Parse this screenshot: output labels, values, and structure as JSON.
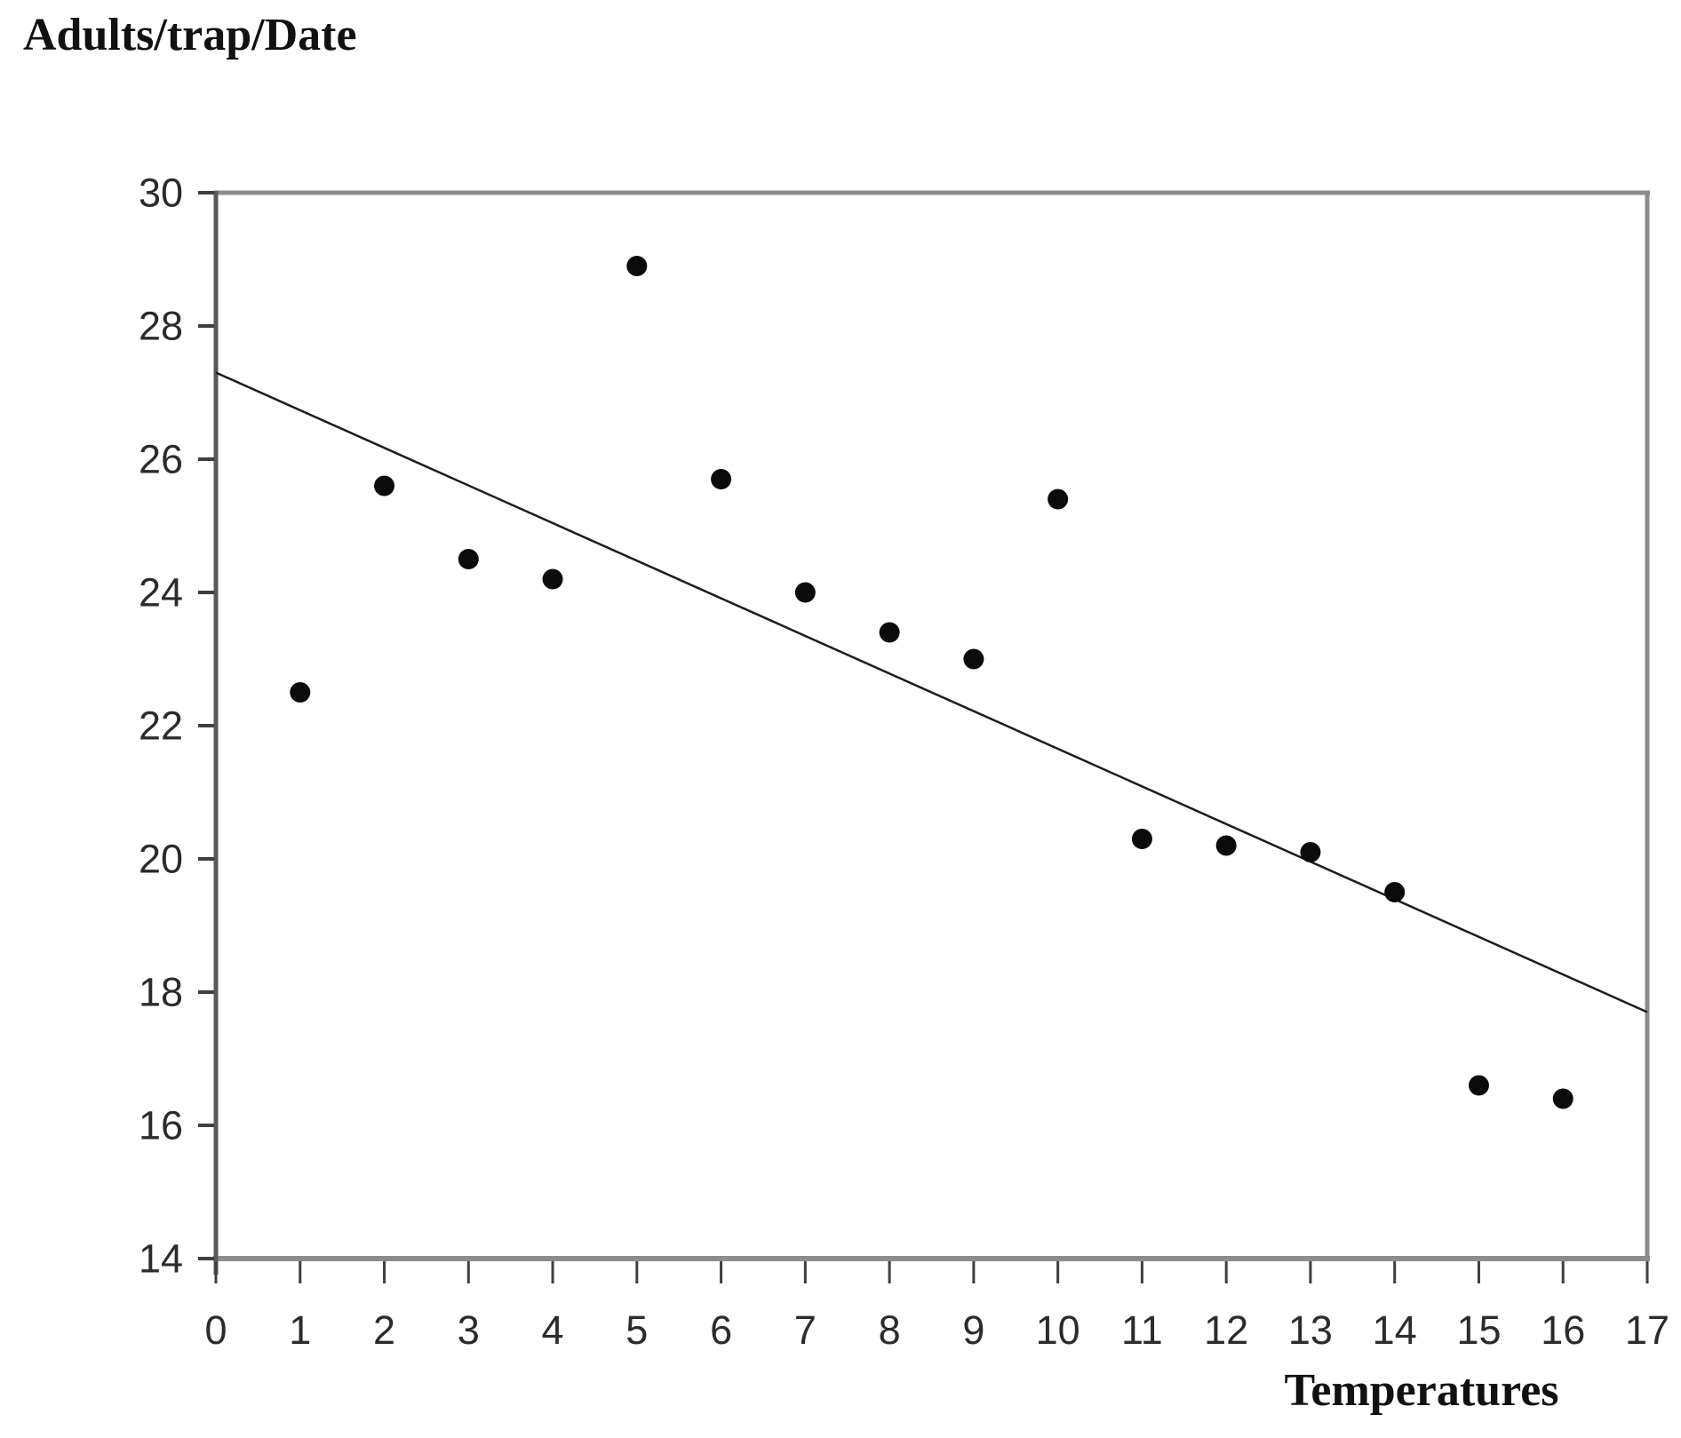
{
  "chart_data": {
    "type": "scatter",
    "title": "",
    "ylabel": "Adults/trap/Date",
    "xlabel": "Temperatures",
    "xlim": [
      0,
      17
    ],
    "ylim": [
      14,
      30
    ],
    "x_ticks": [
      0,
      1,
      2,
      3,
      4,
      5,
      6,
      7,
      8,
      9,
      10,
      11,
      12,
      13,
      14,
      15,
      16,
      17
    ],
    "y_ticks": [
      14,
      16,
      18,
      20,
      22,
      24,
      26,
      28,
      30
    ],
    "grid": false,
    "legend": false,
    "marker": {
      "shape": "circle",
      "color": "#0b0b0b",
      "radius_px": 11.5
    },
    "series": [
      {
        "name": "Adults per trap per date",
        "x": [
          1,
          2,
          3,
          4,
          5,
          6,
          7,
          8,
          9,
          10,
          11,
          12,
          13,
          14,
          15,
          16
        ],
        "y": [
          22.5,
          25.6,
          24.5,
          24.2,
          28.9,
          25.7,
          24.0,
          23.4,
          23.0,
          25.4,
          20.3,
          20.2,
          20.1,
          19.5,
          16.6,
          16.4
        ]
      }
    ],
    "trendline": {
      "x_start": 0,
      "y_start": 27.3,
      "x_end": 17,
      "y_end": 17.7,
      "color": "#1c1c1c"
    },
    "colors": {
      "frame": "#8c8c8c",
      "y_axis": "#595959",
      "tick": "#3f3f3f",
      "tick_label": "#2b2b2b",
      "title_text": "#111111"
    }
  }
}
